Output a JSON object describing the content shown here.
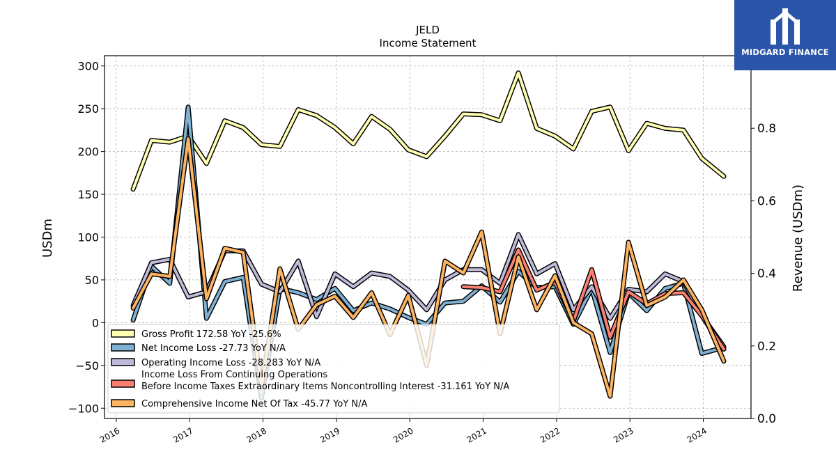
{
  "brand": {
    "name": "MIDGARD FINANCE",
    "background": "#2b55a8"
  },
  "chart_data": {
    "type": "line",
    "title": "JELD",
    "subtitle": "Income Statement",
    "ylabel": "USDm",
    "y2label": "Revenue (USDm)",
    "ylim": [
      -112,
      312
    ],
    "y2lim": [
      0.0,
      1.0
    ],
    "yticks": [
      300,
      250,
      200,
      150,
      100,
      50,
      0,
      -50,
      -100
    ],
    "y2ticks": [
      0.8,
      0.6,
      0.4,
      0.2,
      0.0
    ],
    "xlim": [
      2015.84,
      2024.65
    ],
    "xticks": [
      "2016",
      "2017",
      "2018",
      "2019",
      "2020",
      "2021",
      "2022",
      "2023",
      "2024"
    ],
    "grid": true,
    "legend_position": "lower-left",
    "series": [
      {
        "name": "Gross Profit  172.58 YoY -25.6%",
        "color": "#ffffb3",
        "x": [
          2016.23,
          2016.48,
          2016.73,
          2016.98,
          2017.23,
          2017.48,
          2017.73,
          2017.98,
          2018.23,
          2018.48,
          2018.73,
          2018.98,
          2019.23,
          2019.48,
          2019.73,
          2019.98,
          2020.23,
          2020.48,
          2020.73,
          2020.98,
          2021.23,
          2021.48,
          2021.73,
          2021.98,
          2022.23,
          2022.48,
          2022.73,
          2022.98,
          2023.23,
          2023.48,
          2023.73,
          2023.98,
          2024.28
        ],
        "values": [
          156,
          213,
          211,
          218,
          186,
          236,
          228,
          208,
          206,
          249,
          242,
          228,
          209,
          241,
          226,
          202,
          194,
          218,
          244,
          243,
          236,
          292,
          227,
          218,
          203,
          247,
          252,
          201,
          233,
          227,
          225,
          192,
          171
        ]
      },
      {
        "name": "Net Income Loss  -27.73 YoY N/A",
        "color": "#80b1d3",
        "x": [
          2016.23,
          2016.48,
          2016.73,
          2016.98,
          2017.23,
          2017.48,
          2017.73,
          2017.98,
          2018.23,
          2018.48,
          2018.73,
          2018.98,
          2019.23,
          2019.48,
          2019.73,
          2019.98,
          2020.23,
          2020.48,
          2020.73,
          2020.98,
          2021.23,
          2021.48,
          2021.73,
          2021.98,
          2022.23,
          2022.48,
          2022.73,
          2022.98,
          2023.23,
          2023.48,
          2023.73,
          2023.98,
          2024.28
        ],
        "values": [
          3,
          66,
          46,
          252,
          5,
          48,
          53,
          -88,
          40,
          35,
          27,
          40,
          14,
          23,
          16,
          6,
          -2,
          23,
          25,
          43,
          24,
          60,
          41,
          42,
          -2,
          40,
          -35,
          35,
          14,
          40,
          46,
          -36,
          -29
        ]
      },
      {
        "name": "Operating Income Loss  -28.283 YoY N/A",
        "color": "#bebada",
        "x": [
          2016.23,
          2016.48,
          2016.73,
          2016.98,
          2017.23,
          2017.48,
          2017.73,
          2017.98,
          2018.23,
          2018.48,
          2018.73,
          2018.98,
          2019.23,
          2019.48,
          2019.73,
          2019.98,
          2020.23,
          2020.48,
          2020.73,
          2020.98,
          2021.23,
          2021.48,
          2021.73,
          2021.98,
          2022.23,
          2022.48,
          2022.73,
          2022.98,
          2023.23,
          2023.48,
          2023.73,
          2023.98,
          2024.28
        ],
        "values": [
          20,
          70,
          74,
          30,
          36,
          84,
          84,
          45,
          36,
          72,
          7,
          57,
          42,
          58,
          54,
          38,
          15,
          50,
          62,
          62,
          46,
          103,
          57,
          69,
          15,
          42,
          5,
          39,
          36,
          57,
          48,
          8,
          -28
        ]
      },
      {
        "name": "Income Loss From Continuing Operations\nBefore Income Taxes Extraordinary Items Noncontrolling Interest  -31.161 YoY N/A",
        "color": "#fb8072",
        "x": [
          2020.73,
          2020.98,
          2021.23,
          2021.48,
          2021.73,
          2021.98,
          2022.23,
          2022.48,
          2022.73,
          2022.98,
          2023.23,
          2023.48,
          2023.73,
          2023.98,
          2024.28
        ],
        "values": [
          42,
          41,
          36,
          85,
          38,
          47,
          2,
          62,
          -17,
          36,
          22,
          34,
          35,
          8,
          -31
        ]
      },
      {
        "name": "Comprehensive Income Net Of Tax  -45.77 YoY N/A",
        "color": "#fdb462",
        "x": [
          2016.23,
          2016.48,
          2016.73,
          2016.98,
          2017.23,
          2017.48,
          2017.73,
          2017.98,
          2018.23,
          2018.48,
          2018.73,
          2018.98,
          2019.23,
          2019.48,
          2019.73,
          2019.98,
          2020.23,
          2020.48,
          2020.73,
          2020.98,
          2021.23,
          2021.48,
          2021.73,
          2021.98,
          2022.23,
          2022.48,
          2022.73,
          2022.98,
          2023.23,
          2023.48,
          2023.73,
          2023.98,
          2024.28
        ],
        "values": [
          17,
          57,
          54,
          215,
          28,
          87,
          82,
          -75,
          63,
          -8,
          21,
          31,
          6,
          35,
          -14,
          32,
          -50,
          72,
          58,
          106,
          -13,
          77,
          15,
          55,
          0,
          -13,
          -86,
          94,
          20,
          30,
          50,
          15,
          -45
        ]
      }
    ]
  }
}
